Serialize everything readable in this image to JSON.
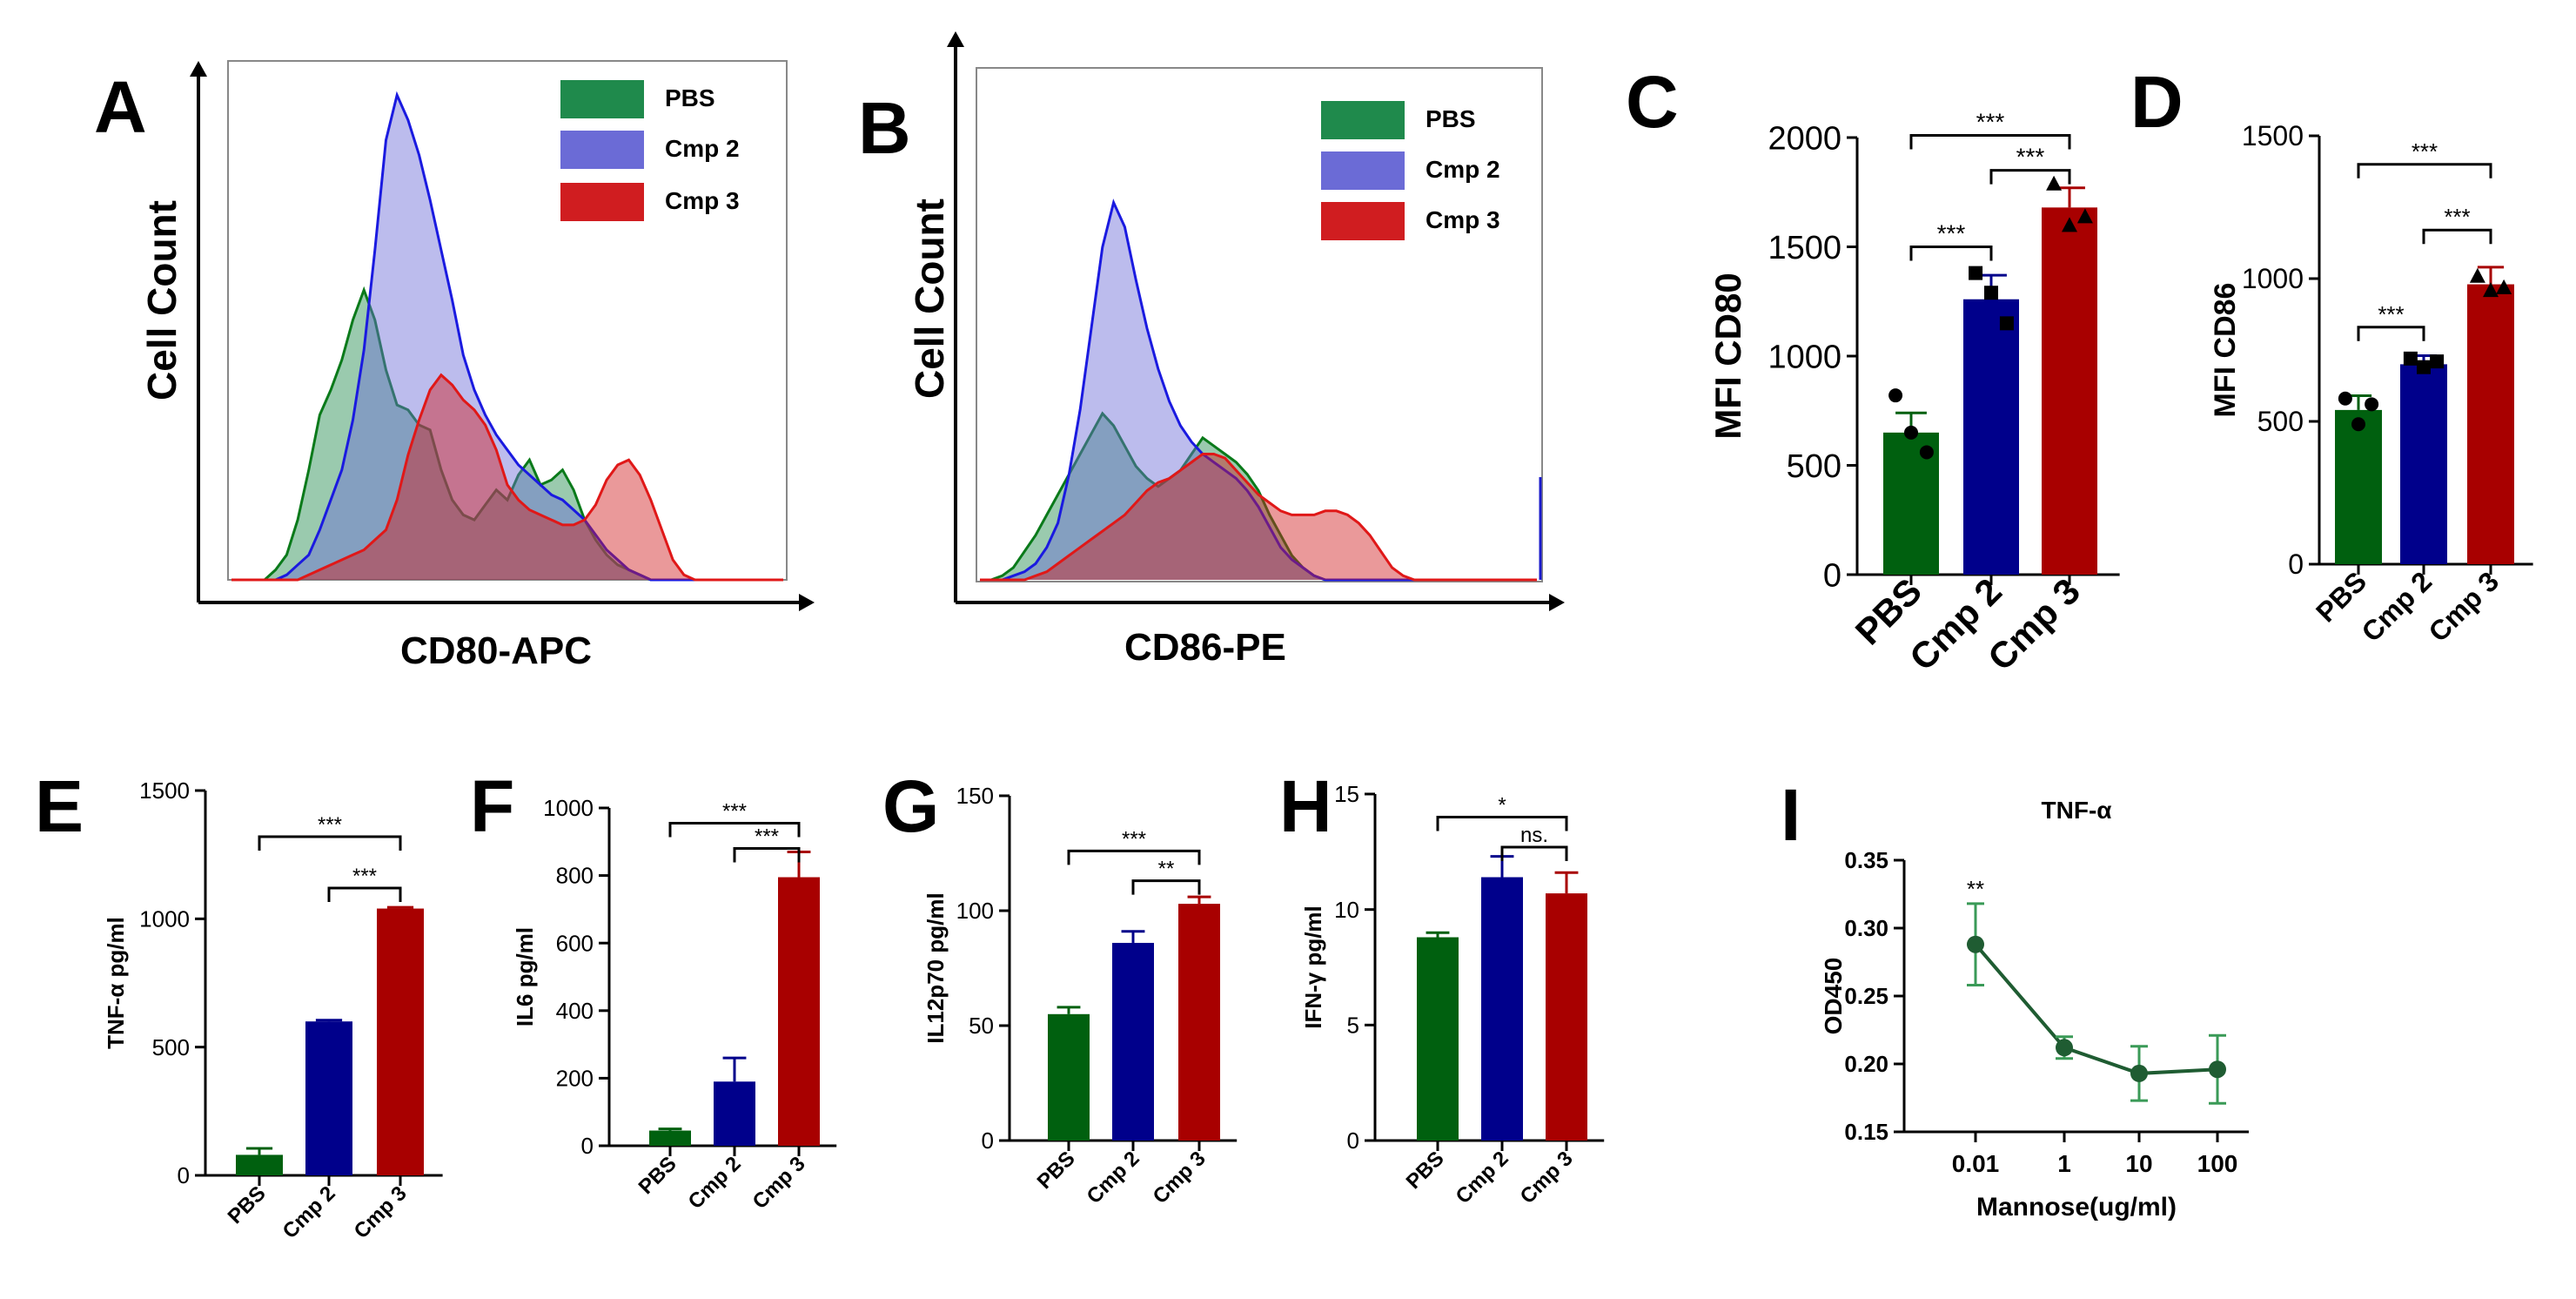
{
  "colors": {
    "pbs": "#00600f",
    "cmp2": "#00008b",
    "cmp3": "#a80000",
    "legend_pbs": "#1f8a4c",
    "legend_cmp2": "#6b6bd6",
    "legend_cmp3": "#d01d20",
    "line_i": "#1f5c32",
    "error_i": "#3a9a57"
  },
  "panels": {
    "A": "A",
    "B": "B",
    "C": "C",
    "D": "D",
    "E": "E",
    "F": "F",
    "G": "G",
    "H": "H",
    "I": "I"
  },
  "significance": {
    "three": "***",
    "two": "**",
    "one": "*",
    "ns": "ns."
  },
  "chart_data": [
    {
      "panel": "A",
      "type": "area",
      "title": "",
      "xlabel": "CD80-APC",
      "ylabel": "Cell Count",
      "legend": [
        "PBS",
        "Cmp 2",
        "Cmp 3"
      ],
      "x": [
        0,
        1,
        2,
        3,
        4,
        5,
        6,
        7,
        8,
        9,
        10,
        11,
        12,
        13,
        14,
        15,
        16,
        17,
        18,
        19,
        20,
        21,
        22,
        23,
        24,
        25,
        26,
        27,
        28,
        29,
        30,
        31,
        32,
        33,
        34,
        35,
        36,
        37,
        38,
        39,
        40,
        41,
        42,
        43,
        44,
        45,
        46,
        47,
        48,
        49,
        50
      ],
      "series": [
        {
          "name": "PBS",
          "values": [
            0,
            0,
            0,
            0,
            2,
            5,
            12,
            22,
            33,
            38,
            44,
            52,
            58,
            52,
            42,
            35,
            34,
            31,
            30,
            22,
            16,
            13,
            12,
            15,
            18,
            16,
            21,
            24,
            19,
            20,
            22,
            18,
            12,
            8,
            5,
            3,
            2,
            1,
            0,
            0,
            0,
            0,
            0,
            0,
            0,
            0,
            0,
            0,
            0,
            0,
            0
          ]
        },
        {
          "name": "Cmp 2",
          "values": [
            0,
            0,
            0,
            0,
            0,
            1,
            3,
            5,
            10,
            16,
            22,
            32,
            46,
            66,
            88,
            97,
            92,
            85,
            76,
            66,
            56,
            45,
            38,
            33,
            29,
            26,
            23,
            21,
            19,
            17,
            16,
            14,
            12,
            9,
            6,
            4,
            2,
            1,
            0,
            0,
            0,
            0,
            0,
            0,
            0,
            0,
            0,
            0,
            0,
            0,
            0
          ]
        },
        {
          "name": "Cmp 3",
          "values": [
            0,
            0,
            0,
            0,
            0,
            0,
            0,
            1,
            2,
            3,
            4,
            5,
            6,
            8,
            10,
            16,
            25,
            32,
            38,
            41,
            39,
            36,
            34,
            31,
            26,
            19,
            16,
            14,
            13,
            12,
            11,
            11,
            12,
            15,
            20,
            23,
            24,
            21,
            16,
            10,
            4,
            1,
            0,
            0,
            0,
            0,
            0,
            0,
            0,
            0,
            0
          ]
        }
      ]
    },
    {
      "panel": "B",
      "type": "area",
      "title": "",
      "xlabel": "CD86-PE",
      "ylabel": "Cell Count",
      "legend": [
        "PBS",
        "Cmp 2",
        "Cmp 3"
      ],
      "x": [
        0,
        1,
        2,
        3,
        4,
        5,
        6,
        7,
        8,
        9,
        10,
        11,
        12,
        13,
        14,
        15,
        16,
        17,
        18,
        19,
        20,
        21,
        22,
        23,
        24,
        25,
        26,
        27,
        28,
        29,
        30,
        31,
        32,
        33,
        34,
        35,
        36,
        37,
        38,
        39,
        40,
        41,
        42,
        43,
        44,
        45,
        46,
        47,
        48,
        49,
        50
      ],
      "series": [
        {
          "name": "PBS",
          "values": [
            0,
            0,
            1,
            3,
            7,
            11,
            16,
            21,
            26,
            31,
            36,
            41,
            38,
            33,
            28,
            25,
            23,
            25,
            27,
            31,
            35,
            33,
            31,
            29,
            26,
            22,
            16,
            11,
            6,
            3,
            1,
            0,
            0,
            0,
            0,
            0,
            0,
            0,
            0,
            0,
            0,
            0,
            0,
            0,
            0,
            0,
            0,
            0,
            0,
            0,
            0
          ]
        },
        {
          "name": "Cmp 2",
          "values": [
            0,
            0,
            0,
            1,
            2,
            4,
            8,
            14,
            26,
            42,
            62,
            82,
            93,
            87,
            74,
            62,
            52,
            44,
            38,
            34,
            31,
            29,
            27,
            25,
            22,
            18,
            13,
            8,
            5,
            3,
            1,
            0,
            0,
            0,
            0,
            0,
            0,
            0,
            0,
            0,
            0,
            0,
            0,
            0,
            0,
            0,
            0,
            0,
            0,
            0,
            0
          ]
        },
        {
          "name": "Cmp 3",
          "values": [
            0,
            0,
            0,
            0,
            0,
            1,
            2,
            4,
            6,
            8,
            10,
            12,
            14,
            16,
            19,
            22,
            24,
            25,
            27,
            29,
            31,
            31,
            30,
            27,
            24,
            21,
            19,
            17,
            16,
            16,
            16,
            17,
            17,
            16,
            14,
            11,
            7,
            3,
            1,
            0,
            0,
            0,
            0,
            0,
            0,
            0,
            0,
            0,
            0,
            0,
            0
          ]
        }
      ]
    },
    {
      "panel": "C",
      "type": "bar",
      "ylabel": "MFI CD80",
      "categories": [
        "PBS",
        "Cmp 2",
        "Cmp 3"
      ],
      "values": [
        650,
        1260,
        1680
      ],
      "errors": [
        90,
        110,
        90
      ],
      "ylim": [
        0,
        2000
      ],
      "yticks": [
        0,
        500,
        1000,
        1500,
        2000
      ],
      "points": [
        [
          820,
          650,
          560
        ],
        [
          1380,
          1290,
          1150
        ],
        [
          1790,
          1600,
          1640
        ]
      ]
    },
    {
      "panel": "D",
      "type": "bar",
      "ylabel": "MFI CD86",
      "categories": [
        "PBS",
        "Cmp 2",
        "Cmp 3"
      ],
      "values": [
        540,
        700,
        980
      ],
      "errors": [
        50,
        30,
        60
      ],
      "ylim": [
        0,
        1500
      ],
      "yticks": [
        0,
        500,
        1000,
        1500
      ],
      "points": [
        [
          580,
          490,
          560
        ],
        [
          720,
          690,
          710
        ],
        [
          1010,
          960,
          970
        ]
      ]
    },
    {
      "panel": "E",
      "type": "bar",
      "ylabel": "TNF-α pg/ml",
      "categories": [
        "PBS",
        "Cmp 2",
        "Cmp 3"
      ],
      "values": [
        80,
        600,
        1040
      ],
      "errors": [
        25,
        5,
        5
      ],
      "ylim": [
        0,
        1500
      ],
      "yticks": [
        0,
        500,
        1000,
        1500
      ]
    },
    {
      "panel": "F",
      "type": "bar",
      "ylabel": "IL6 pg/ml",
      "categories": [
        "PBS",
        "Cmp 2",
        "Cmp 3"
      ],
      "values": [
        45,
        190,
        795
      ],
      "errors": [
        5,
        70,
        75
      ],
      "ylim": [
        0,
        1000
      ],
      "yticks": [
        0,
        200,
        400,
        600,
        800,
        1000
      ]
    },
    {
      "panel": "G",
      "type": "bar",
      "ylabel": "IL12p70 pg/ml",
      "categories": [
        "PBS",
        "Cmp 2",
        "Cmp 3"
      ],
      "values": [
        55,
        86,
        103
      ],
      "errors": [
        3,
        5,
        3
      ],
      "ylim": [
        0,
        150
      ],
      "yticks": [
        0,
        50,
        100,
        150
      ]
    },
    {
      "panel": "H",
      "type": "bar",
      "ylabel": "IFN-γ pg/ml",
      "categories": [
        "PBS",
        "Cmp 2",
        "Cmp 3"
      ],
      "values": [
        8.8,
        11.4,
        10.7
      ],
      "errors": [
        0.2,
        0.9,
        0.9
      ],
      "ylim": [
        0,
        15
      ],
      "yticks": [
        0,
        5,
        10,
        15
      ]
    },
    {
      "panel": "I",
      "type": "line",
      "title": "TNF-α",
      "xlabel": "Mannose(ug/ml)",
      "ylabel": "OD450",
      "categories": [
        "0.01",
        "1",
        "10",
        "100"
      ],
      "values": [
        0.288,
        0.212,
        0.193,
        0.196
      ],
      "errors": [
        0.03,
        0.008,
        0.02,
        0.025
      ],
      "ylim": [
        0.15,
        0.35
      ],
      "yticks": [
        "0.15",
        "0.20",
        "0.25",
        "0.30",
        "0.35"
      ],
      "annotation": "**"
    }
  ]
}
